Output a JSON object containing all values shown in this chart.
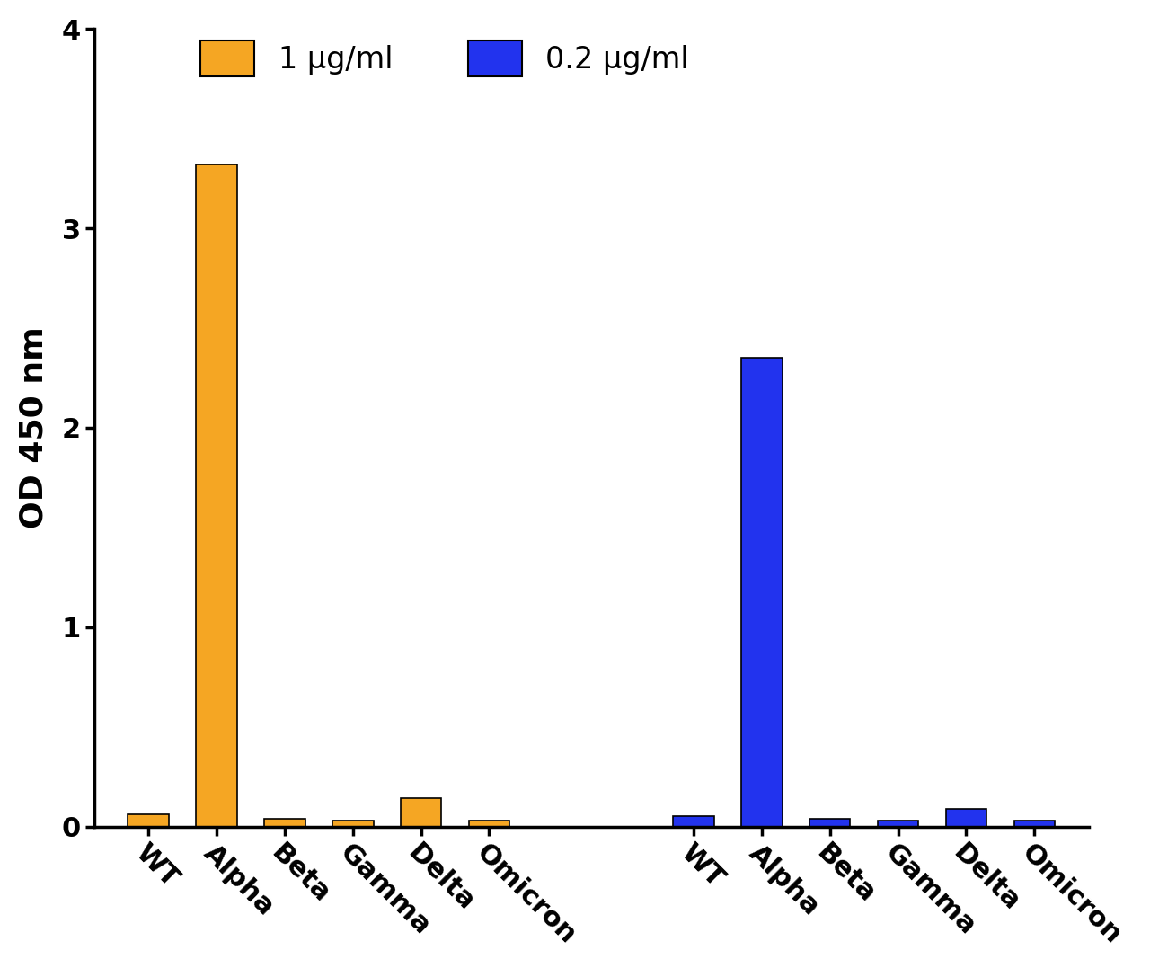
{
  "categories": [
    "WT",
    "Alpha",
    "Beta",
    "Gamma",
    "Delta",
    "Omicron"
  ],
  "orange_values": [
    0.06,
    3.32,
    0.04,
    0.03,
    0.14,
    0.03
  ],
  "blue_values": [
    0.05,
    2.35,
    0.04,
    0.03,
    0.09,
    0.03
  ],
  "orange_color": "#F5A623",
  "blue_color": "#2233EE",
  "ylabel": "OD 450 nm",
  "ylim": [
    0,
    4
  ],
  "yticks": [
    0,
    1,
    2,
    3,
    4
  ],
  "legend_orange": "1 μg/ml",
  "legend_blue": "0.2 μg/ml",
  "bar_width": 0.6,
  "background_color": "#ffffff",
  "tick_fontsize": 22,
  "label_fontsize": 26,
  "legend_fontsize": 24
}
